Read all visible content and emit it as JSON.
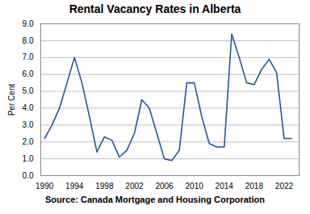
{
  "chart_data": {
    "type": "line",
    "title": "Rental Vacancy Rates in Alberta",
    "caption": "Source:  Canada Mortgage and Housing Corporation",
    "ylabel": "Per Cent",
    "x": [
      1990,
      1991,
      1992,
      1993,
      1994,
      1995,
      1996,
      1997,
      1998,
      1999,
      2000,
      2001,
      2002,
      2003,
      2004,
      2005,
      2006,
      2007,
      2008,
      2009,
      2010,
      2011,
      2012,
      2013,
      2014,
      2015,
      2016,
      2017,
      2018,
      2019,
      2020,
      2021,
      2022,
      2023
    ],
    "values": [
      2.2,
      3.0,
      4.0,
      5.5,
      7.0,
      5.5,
      3.5,
      1.4,
      2.3,
      2.1,
      1.1,
      1.5,
      2.5,
      4.5,
      4.0,
      2.5,
      1.0,
      0.9,
      1.5,
      5.5,
      5.5,
      3.5,
      1.9,
      1.7,
      1.7,
      8.4,
      7.0,
      5.5,
      5.4,
      6.3,
      6.9,
      6.1,
      2.2,
      2.2
    ],
    "color": "#2255aa",
    "xlim": [
      1989.5,
      2024.0
    ],
    "xticks": [
      1990,
      1994,
      1998,
      2002,
      2006,
      2010,
      2014,
      2018,
      2022
    ],
    "ylim": [
      0.0,
      9.0
    ],
    "yticks": [
      {
        "value": 0.0,
        "label": "0.0"
      },
      {
        "value": 1.0,
        "label": "1.0"
      },
      {
        "value": 2.0,
        "label": "2.0"
      },
      {
        "value": 3.0,
        "label": "3.0"
      },
      {
        "value": 4.0,
        "label": "4.0"
      },
      {
        "value": 5.0,
        "label": "5.0"
      },
      {
        "value": 6.0,
        "label": "6.0"
      },
      {
        "value": 7.0,
        "label": "7.0"
      },
      {
        "value": 8.0,
        "label": "8.0"
      },
      {
        "value": 9.0,
        "label": "9.0"
      }
    ],
    "grid": true
  }
}
